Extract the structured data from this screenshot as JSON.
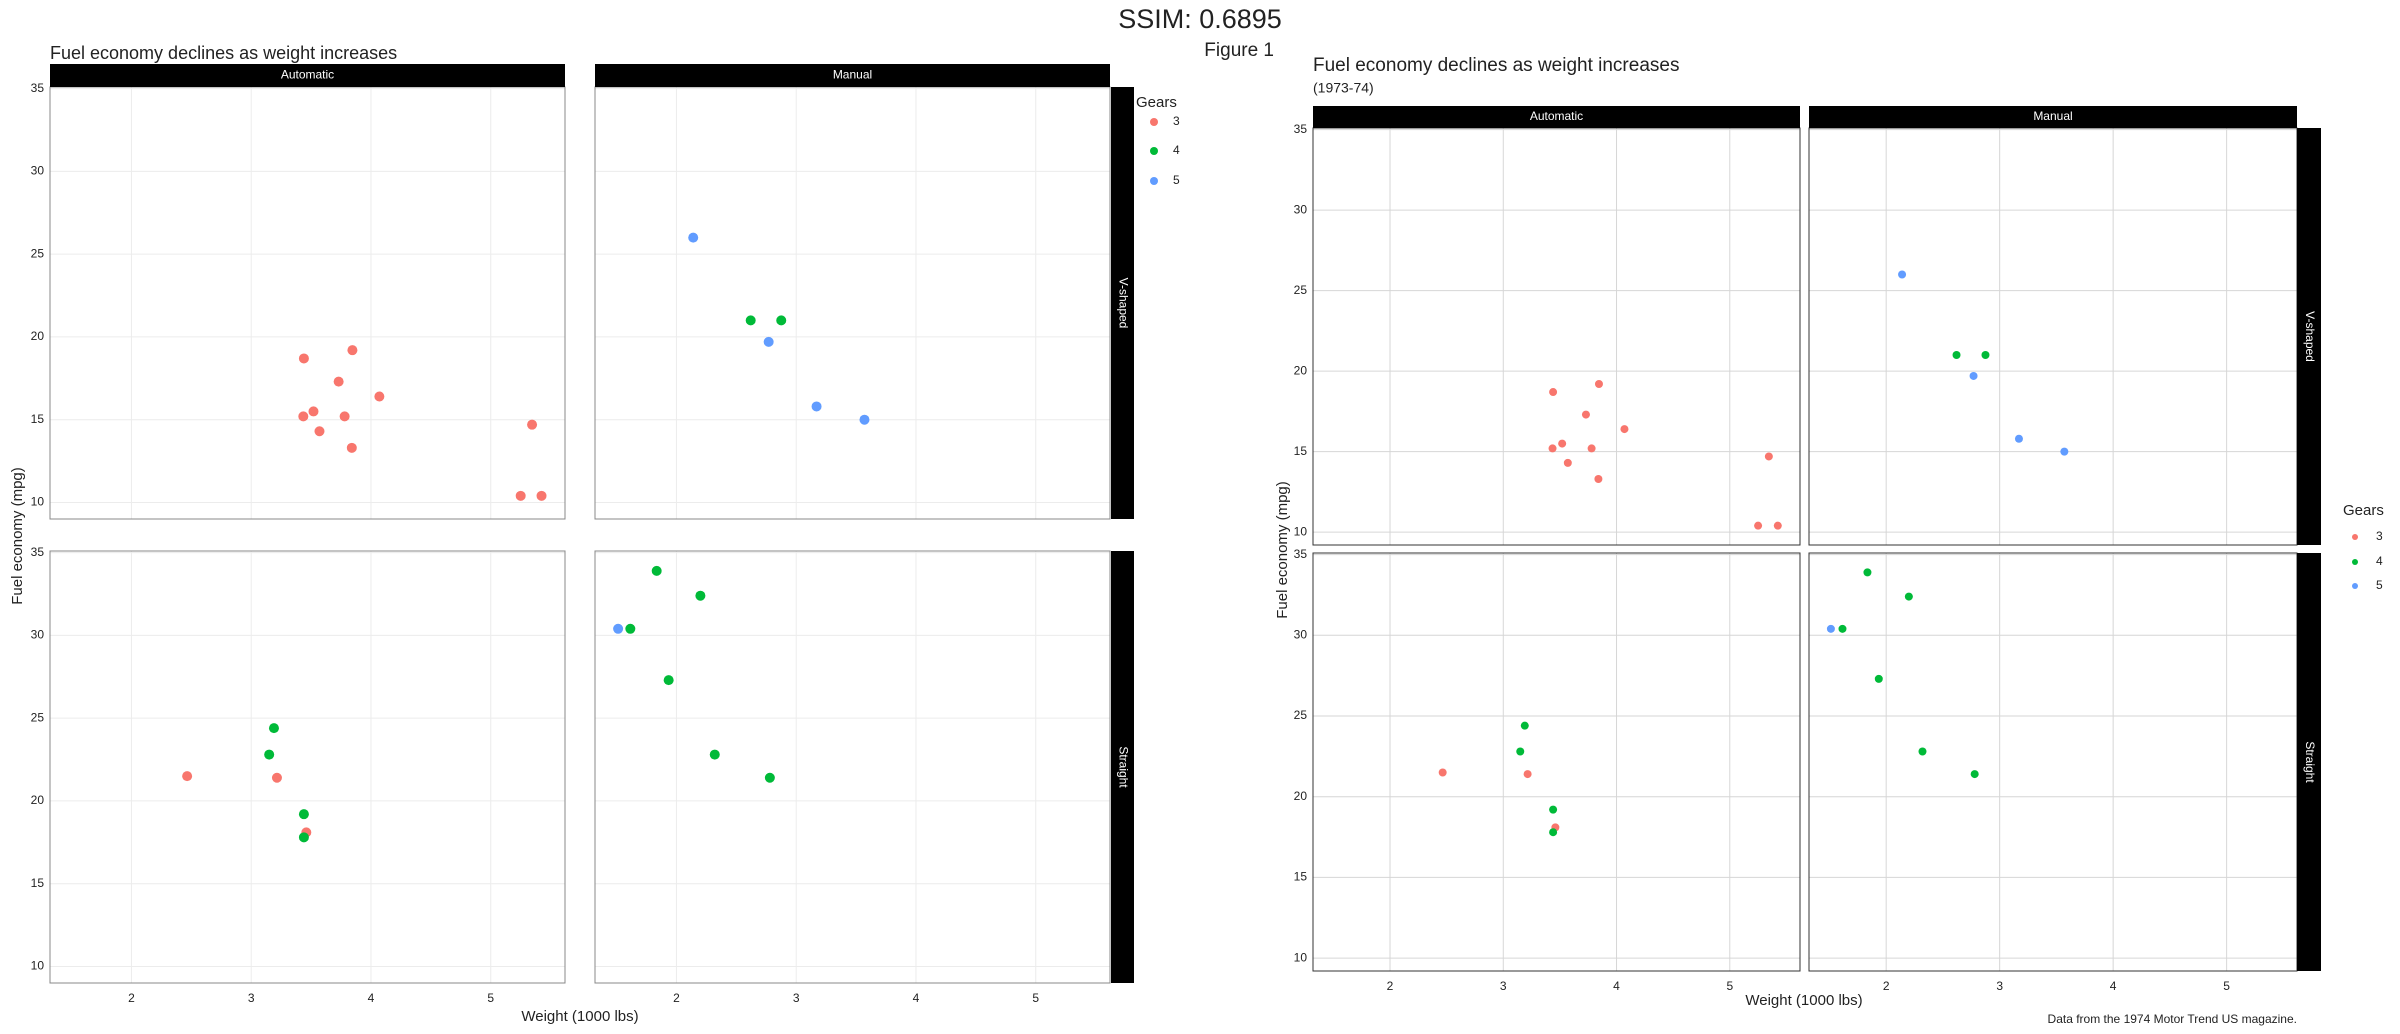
{
  "header": {
    "title": "SSIM: 0.6895",
    "figure_label": "Figure 1"
  },
  "chart_data": [
    {
      "type": "scatter",
      "title": "Fuel economy declines as weight increases",
      "x_label": "Weight (1000 lbs)",
      "y_label": "Fuel economy (mpg)",
      "legend_title": "Gears",
      "facets": {
        "columns": [
          "Automatic",
          "Manual"
        ],
        "rows": [
          "V-shaped",
          "Straight"
        ]
      },
      "xlim": [
        1.32,
        5.62
      ],
      "xticks": [
        2,
        3,
        4,
        5
      ],
      "ylim": [
        9.0,
        35.1
      ],
      "yticks": [
        10,
        15,
        20,
        25,
        30,
        35
      ],
      "grid": true,
      "series": [
        {
          "name": "3",
          "color": "#F8766D",
          "x": [
            3.44,
            3.57,
            4.07,
            3.73,
            3.78,
            5.25,
            5.424,
            5.345,
            3.52,
            3.435,
            3.84,
            3.845,
            3.215,
            3.46,
            2.465
          ],
          "y": [
            18.7,
            14.3,
            16.4,
            17.3,
            15.2,
            10.4,
            10.4,
            14.7,
            15.5,
            15.2,
            13.3,
            19.2,
            21.4,
            18.1,
            21.5
          ],
          "transmission": [
            "Automatic",
            "Automatic",
            "Automatic",
            "Automatic",
            "Automatic",
            "Automatic",
            "Automatic",
            "Automatic",
            "Automatic",
            "Automatic",
            "Automatic",
            "Automatic",
            "Automatic",
            "Automatic",
            "Automatic"
          ],
          "engine": [
            "V-shaped",
            "V-shaped",
            "V-shaped",
            "V-shaped",
            "V-shaped",
            "V-shaped",
            "V-shaped",
            "V-shaped",
            "V-shaped",
            "V-shaped",
            "V-shaped",
            "V-shaped",
            "Straight",
            "Straight",
            "Straight"
          ]
        },
        {
          "name": "4",
          "color": "#00BA38",
          "x": [
            3.19,
            3.15,
            3.44,
            3.44,
            2.62,
            2.875,
            2.32,
            2.2,
            1.615,
            1.835,
            1.935,
            2.78
          ],
          "y": [
            24.4,
            22.8,
            19.2,
            17.8,
            21,
            21,
            22.8,
            32.4,
            30.4,
            33.9,
            27.3,
            21.4
          ],
          "transmission": [
            "Automatic",
            "Automatic",
            "Automatic",
            "Automatic",
            "Manual",
            "Manual",
            "Manual",
            "Manual",
            "Manual",
            "Manual",
            "Manual",
            "Manual"
          ],
          "engine": [
            "Straight",
            "Straight",
            "Straight",
            "Straight",
            "V-shaped",
            "V-shaped",
            "Straight",
            "Straight",
            "Straight",
            "Straight",
            "Straight",
            "Straight"
          ]
        },
        {
          "name": "5",
          "color": "#619CFF",
          "x": [
            2.14,
            3.17,
            2.77,
            3.57,
            1.513
          ],
          "y": [
            26,
            15.8,
            19.7,
            15,
            30.4
          ],
          "transmission": [
            "Manual",
            "Manual",
            "Manual",
            "Manual",
            "Manual"
          ],
          "engine": [
            "V-shaped",
            "V-shaped",
            "V-shaped",
            "V-shaped",
            "Straight"
          ]
        }
      ]
    },
    {
      "type": "scatter",
      "title": "Fuel economy declines as weight increases",
      "subtitle": "(1973-74)",
      "caption": "Data from the 1974 Motor Trend US magazine.",
      "x_label": "Weight (1000 lbs)",
      "y_label": "Fuel economy (mpg)",
      "legend_title": "Gears",
      "facets": {
        "columns": [
          "Automatic",
          "Manual"
        ],
        "rows": [
          "V-shaped",
          "Straight"
        ]
      },
      "xlim": [
        1.32,
        5.62
      ],
      "xticks": [
        2,
        3,
        4,
        5
      ],
      "ylim": [
        9.2,
        35.1
      ],
      "yticks": [
        10,
        15,
        20,
        25,
        30,
        35
      ],
      "grid": true,
      "series": [
        {
          "name": "3",
          "color": "#F8766D",
          "x": [
            3.44,
            3.57,
            4.07,
            3.73,
            3.78,
            5.25,
            5.424,
            5.345,
            3.52,
            3.435,
            3.84,
            3.845,
            3.215,
            3.46,
            2.465
          ],
          "y": [
            18.7,
            14.3,
            16.4,
            17.3,
            15.2,
            10.4,
            10.4,
            14.7,
            15.5,
            15.2,
            13.3,
            19.2,
            21.4,
            18.1,
            21.5
          ],
          "transmission": [
            "Automatic",
            "Automatic",
            "Automatic",
            "Automatic",
            "Automatic",
            "Automatic",
            "Automatic",
            "Automatic",
            "Automatic",
            "Automatic",
            "Automatic",
            "Automatic",
            "Automatic",
            "Automatic",
            "Automatic"
          ],
          "engine": [
            "V-shaped",
            "V-shaped",
            "V-shaped",
            "V-shaped",
            "V-shaped",
            "V-shaped",
            "V-shaped",
            "V-shaped",
            "V-shaped",
            "V-shaped",
            "V-shaped",
            "V-shaped",
            "Straight",
            "Straight",
            "Straight"
          ]
        },
        {
          "name": "4",
          "color": "#00BA38",
          "x": [
            3.19,
            3.15,
            3.44,
            3.44,
            2.62,
            2.875,
            2.32,
            2.2,
            1.615,
            1.835,
            1.935,
            2.78
          ],
          "y": [
            24.4,
            22.8,
            19.2,
            17.8,
            21,
            21,
            22.8,
            32.4,
            30.4,
            33.9,
            27.3,
            21.4
          ],
          "transmission": [
            "Automatic",
            "Automatic",
            "Automatic",
            "Automatic",
            "Manual",
            "Manual",
            "Manual",
            "Manual",
            "Manual",
            "Manual",
            "Manual",
            "Manual"
          ],
          "engine": [
            "Straight",
            "Straight",
            "Straight",
            "Straight",
            "V-shaped",
            "V-shaped",
            "Straight",
            "Straight",
            "Straight",
            "Straight",
            "Straight",
            "Straight"
          ]
        },
        {
          "name": "5",
          "color": "#619CFF",
          "x": [
            2.14,
            3.17,
            2.77,
            3.57,
            1.513
          ],
          "y": [
            26,
            15.8,
            19.7,
            15,
            30.4
          ],
          "transmission": [
            "Manual",
            "Manual",
            "Manual",
            "Manual",
            "Manual"
          ],
          "engine": [
            "V-shaped",
            "V-shaped",
            "V-shaped",
            "V-shaped",
            "Straight"
          ]
        }
      ]
    }
  ]
}
